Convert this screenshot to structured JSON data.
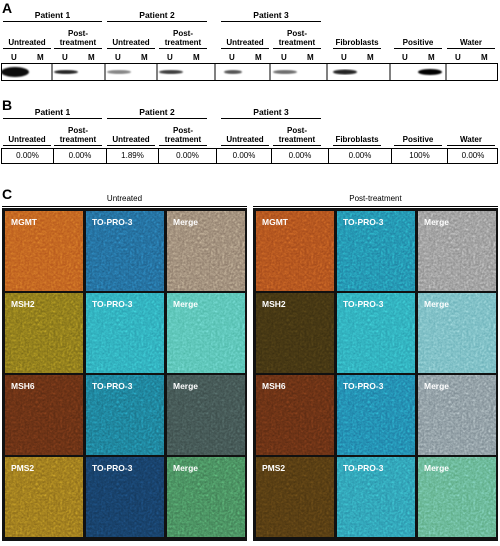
{
  "panel_a": {
    "label": "A",
    "groups": [
      "Patient 1",
      "Patient 2",
      "Patient 3"
    ],
    "columns": [
      "Untreated",
      "Post-treatment",
      "Untreated",
      "Post-treatment",
      "Untreated",
      "Post-treatment",
      "Fibroblasts",
      "Positive",
      "Water"
    ],
    "lanes": [
      "U",
      "M"
    ]
  },
  "panel_b": {
    "label": "B",
    "groups": [
      "Patient 1",
      "Patient 2",
      "Patient 3"
    ],
    "columns": [
      "Untreated",
      "Post-treatment",
      "Untreated",
      "Post-treatment",
      "Untreated",
      "Post-treatment",
      "Fibroblasts",
      "Positive",
      "Water"
    ],
    "values": [
      "0.00%",
      "0.00%",
      "1.89%",
      "0.00%",
      "0.00%",
      "0.00%",
      "0.00%",
      "100%",
      "0.00%"
    ]
  },
  "panel_c": {
    "label": "C",
    "panels": [
      {
        "title": "Untreated",
        "rows": [
          [
            "MGMT",
            "TO-PRO-3",
            "Merge"
          ],
          [
            "MSH2",
            "TO-PRO-3",
            "Merge"
          ],
          [
            "MSH6",
            "TO-PRO-3",
            "Merge"
          ],
          [
            "PMS2",
            "TO-PRO-3",
            "Merge"
          ]
        ]
      },
      {
        "title": "Post-treatment",
        "rows": [
          [
            "MGMT",
            "TO-PRO-3",
            "Merge"
          ],
          [
            "MSH2",
            "TO-PRO-3",
            "Merge"
          ],
          [
            "MSH6",
            "TO-PRO-3",
            "Merge"
          ],
          [
            "PMS2",
            "TO-PRO-3",
            "Merge"
          ]
        ]
      }
    ]
  }
}
